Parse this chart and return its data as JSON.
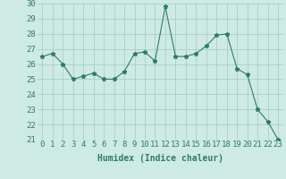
{
  "x": [
    0,
    1,
    2,
    3,
    4,
    5,
    6,
    7,
    8,
    9,
    10,
    11,
    12,
    13,
    14,
    15,
    16,
    17,
    18,
    19,
    20,
    21,
    22,
    23
  ],
  "y": [
    26.5,
    26.7,
    26.0,
    25.0,
    25.2,
    25.4,
    25.0,
    25.0,
    25.5,
    26.7,
    26.8,
    26.2,
    29.8,
    26.5,
    26.5,
    26.7,
    27.2,
    27.9,
    28.0,
    25.7,
    25.3,
    23.0,
    22.2,
    21.0
  ],
  "line_color": "#2e7b6e",
  "marker": "*",
  "marker_size": 3.5,
  "bg_color": "#ceeae4",
  "grid_color": "#a0ccbf",
  "xlabel": "Humidex (Indice chaleur)",
  "ylim": [
    21,
    30
  ],
  "yticks": [
    21,
    22,
    23,
    24,
    25,
    26,
    27,
    28,
    29,
    30
  ],
  "xticks": [
    0,
    1,
    2,
    3,
    4,
    5,
    6,
    7,
    8,
    9,
    10,
    11,
    12,
    13,
    14,
    15,
    16,
    17,
    18,
    19,
    20,
    21,
    22,
    23
  ],
  "xlabel_fontsize": 7,
  "tick_fontsize": 6.5,
  "tick_color": "#2e7b6e",
  "label_color": "#2e7b6e"
}
